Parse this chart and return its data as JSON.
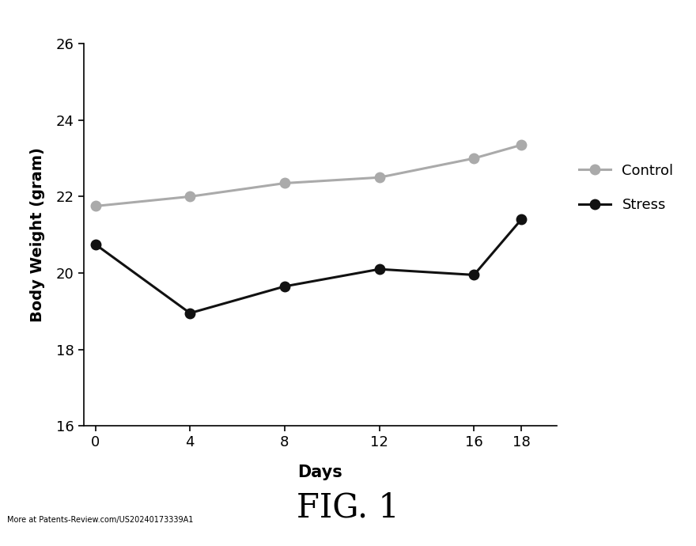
{
  "days": [
    0,
    4,
    8,
    12,
    16,
    18
  ],
  "control_values": [
    21.75,
    22.0,
    22.35,
    22.5,
    23.0,
    23.35
  ],
  "stress_values": [
    20.75,
    18.95,
    19.65,
    20.1,
    19.95,
    21.4
  ],
  "control_color": "#aaaaaa",
  "stress_color": "#111111",
  "ylabel": "Body Weight (gram)",
  "xlabel": "Days",
  "ylim": [
    16,
    26
  ],
  "yticks": [
    16,
    18,
    20,
    22,
    24,
    26
  ],
  "xticks": [
    0,
    4,
    8,
    12,
    16,
    18
  ],
  "fig_label": "FIG. 1",
  "legend_control": "Control",
  "legend_stress": "Stress",
  "watermark": "More at Patents-Review.com/US20240173339A1",
  "background_color": "#ffffff",
  "marker_size": 9,
  "line_width": 2.2
}
